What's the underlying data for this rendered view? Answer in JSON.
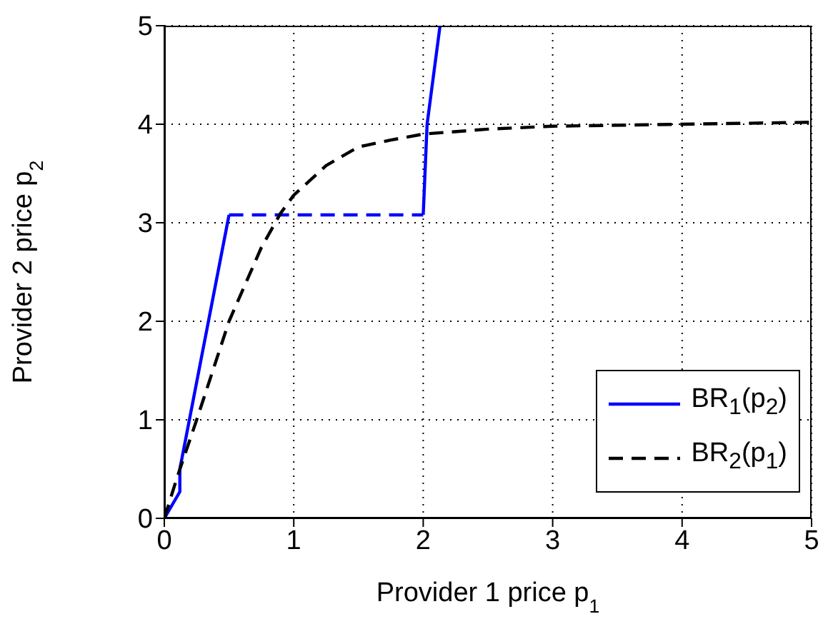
{
  "chart_data": {
    "type": "line",
    "xlabel": "Provider 1 price p$_{1}$",
    "ylabel": "Provider 2 price p$_{2}$",
    "xlim": [
      0,
      5
    ],
    "ylim": [
      0,
      5
    ],
    "xticks": [
      0,
      1,
      2,
      3,
      4,
      5
    ],
    "yticks": [
      0,
      1,
      2,
      3,
      4,
      5
    ],
    "grid": true,
    "legend": "bottom right",
    "marker": "none",
    "series": [
      {
        "name": "BR$_{1}$(p$_{2}$)",
        "color": "#0000ff",
        "line_style": "solid",
        "x": [
          0,
          0.12,
          0.12,
          0.5
        ],
        "values": [
          0,
          0.27,
          0.5,
          3.08
        ]
      },
      {
        "color": "#0000ff",
        "line_style": "dashed",
        "x": [
          0.5,
          2
        ],
        "values": [
          3.08,
          3.08
        ]
      },
      {
        "color": "#0000ff",
        "line_style": "solid",
        "x": [
          2,
          2.03,
          2.13
        ],
        "values": [
          3.08,
          4,
          5
        ]
      },
      {
        "name": "BR$_{2}$(p$_{1}$)",
        "color": "#000000",
        "line_style": "dashed",
        "x": [
          0,
          0.1,
          0.25,
          0.5,
          0.75,
          0.9,
          1,
          1.25,
          1.5,
          1.75,
          2,
          2.5,
          3,
          4,
          5
        ],
        "values": [
          0,
          0.42,
          1,
          2,
          2.75,
          3.1,
          3.28,
          3.58,
          3.77,
          3.84,
          3.9,
          3.95,
          3.98,
          4,
          4.02
        ]
      }
    ]
  }
}
